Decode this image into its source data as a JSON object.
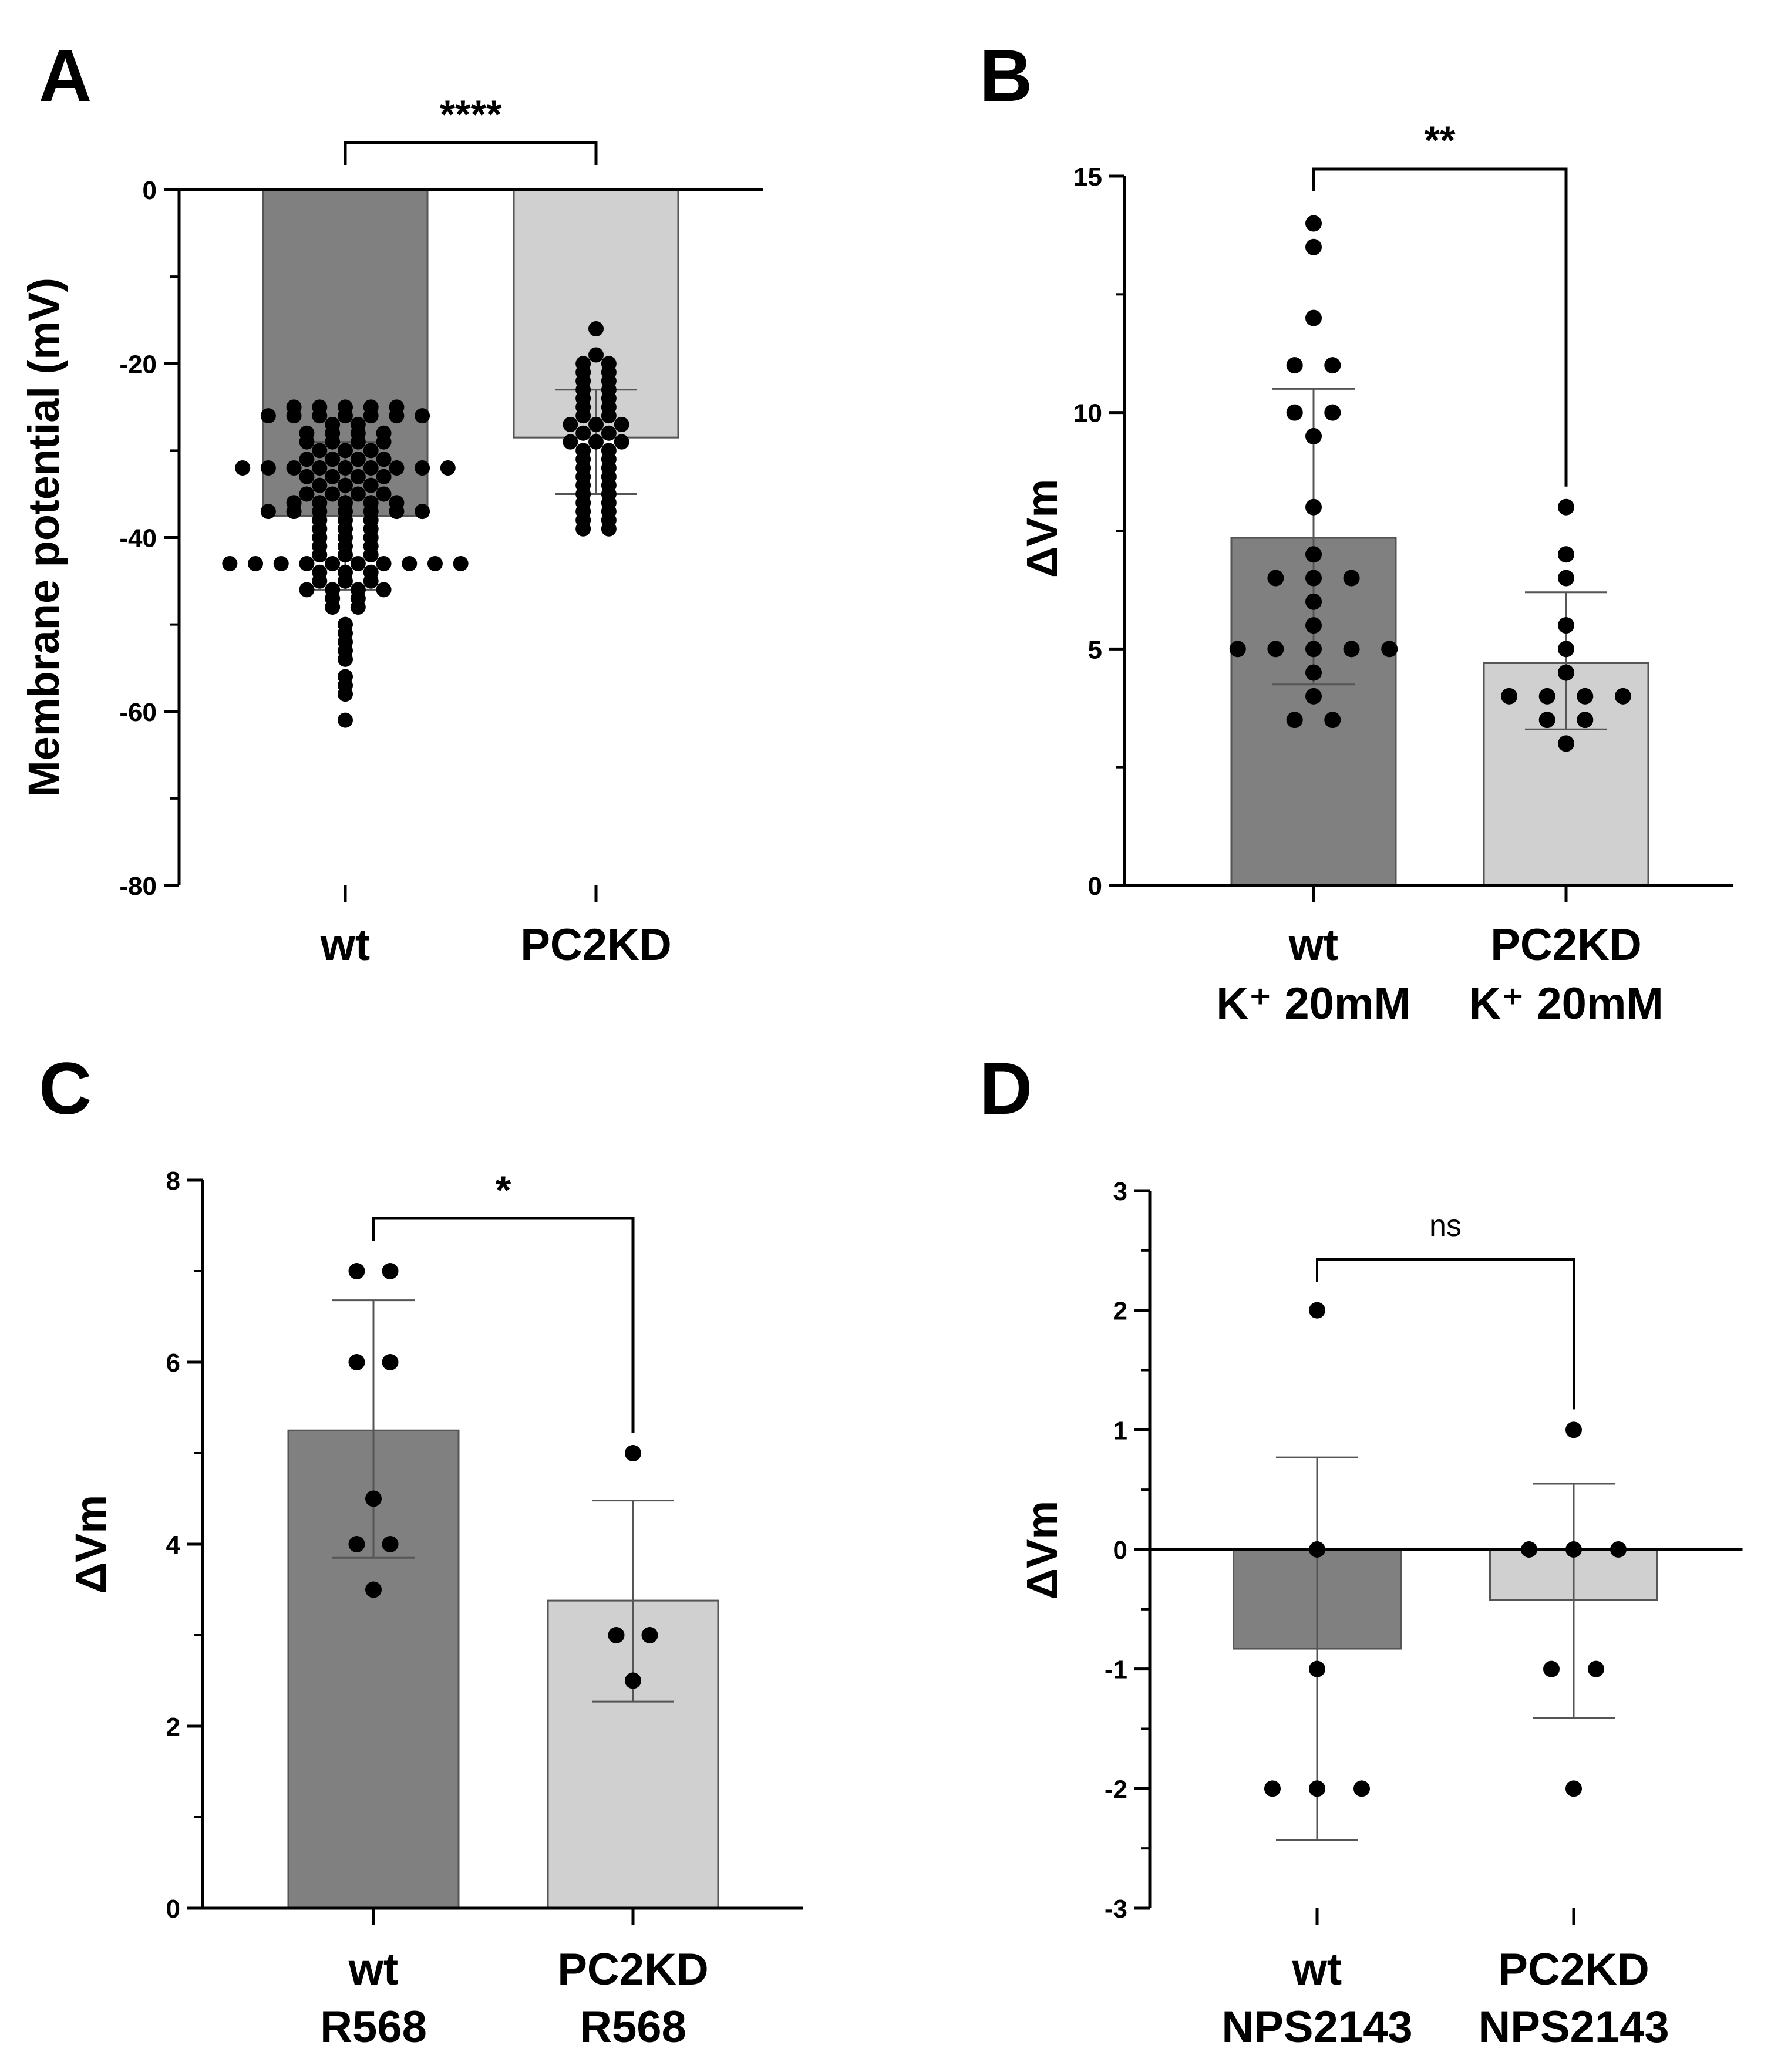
{
  "chart_data": [
    {
      "panel": "A",
      "type": "bar",
      "ylabel": "Membrane potential (mV)",
      "ylim": [
        -80,
        0
      ],
      "yticks": [
        0,
        -20,
        -40,
        -60,
        -80
      ],
      "categories": [
        {
          "label": [
            "wt"
          ],
          "mean": -37.5,
          "sd_low": -46,
          "sd_high": -29,
          "color": "#808080",
          "points": [
            -25,
            -25,
            -25,
            -25,
            -25,
            -26,
            -26,
            -26,
            -26,
            -26,
            -26,
            -26,
            -27,
            -27,
            -28,
            -28,
            -28,
            -28,
            -29,
            -29,
            -29,
            -29,
            -30,
            -30,
            -30,
            -31,
            -31,
            -31,
            -31,
            -32,
            -32,
            -32,
            -32,
            -32,
            -32,
            -32,
            -32,
            -32,
            -33,
            -33,
            -33,
            -33,
            -34,
            -34,
            -34,
            -35,
            -35,
            -35,
            -35,
            -36,
            -36,
            -36,
            -36,
            -36,
            -37,
            -37,
            -37,
            -37,
            -37,
            -37,
            -37,
            -38,
            -38,
            -38,
            -39,
            -39,
            -39,
            -40,
            -40,
            -40,
            -41,
            -41,
            -41,
            -42,
            -42,
            -42,
            -43,
            -43,
            -43,
            -43,
            -43,
            -43,
            -43,
            -43,
            -43,
            -43,
            -44,
            -44,
            -44,
            -45,
            -45,
            -45,
            -46,
            -46,
            -46,
            -46,
            -47,
            -47,
            -48,
            -48,
            -50,
            -51,
            -52,
            -53,
            -54,
            -56,
            -57,
            -58,
            -61
          ]
        },
        {
          "label": [
            "PC2KD"
          ],
          "mean": -28.5,
          "sd_low": -35,
          "sd_high": -23,
          "color": "#d0d0d0",
          "points": [
            -16,
            -19,
            -20,
            -20,
            -21,
            -21,
            -22,
            -22,
            -23,
            -23,
            -24,
            -24,
            -25,
            -25,
            -26,
            -26,
            -27,
            -27,
            -27,
            -28,
            -28,
            -29,
            -29,
            -29,
            -30,
            -30,
            -31,
            -31,
            -32,
            -32,
            -33,
            -33,
            -34,
            -34,
            -35,
            -35,
            -36,
            -36,
            -37,
            -37,
            -38,
            -38,
            -39,
            -39
          ]
        }
      ],
      "comparison": {
        "label": "****"
      }
    },
    {
      "panel": "B",
      "type": "bar",
      "ylabel": "ΔVm",
      "ylim": [
        0,
        15
      ],
      "yticks": [
        0,
        5,
        10,
        15
      ],
      "categories": [
        {
          "label": [
            "wt",
            "K⁺ 20mM"
          ],
          "mean": 7.35,
          "sd_low": 4.25,
          "sd_high": 10.5,
          "color": "#808080",
          "points": [
            14,
            13.5,
            12,
            11,
            11,
            10,
            10,
            9.5,
            8,
            7,
            6.5,
            6.5,
            6.5,
            6,
            5.5,
            5,
            5,
            5,
            5,
            5,
            4.5,
            4,
            3.5,
            3.5
          ]
        },
        {
          "label": [
            "PC2KD",
            "K⁺ 20mM"
          ],
          "mean": 4.7,
          "sd_low": 3.3,
          "sd_high": 6.2,
          "color": "#d0d0d0",
          "points": [
            8,
            7,
            6.5,
            5.5,
            5,
            4.5,
            4,
            4,
            4,
            4,
            3.5,
            3.5,
            3
          ]
        }
      ],
      "comparison": {
        "label": "**"
      }
    },
    {
      "panel": "C",
      "type": "bar",
      "ylabel": "ΔVm",
      "ylim": [
        0,
        8
      ],
      "yticks": [
        0,
        2,
        4,
        6,
        8
      ],
      "categories": [
        {
          "label": [
            "wt",
            "R568"
          ],
          "mean": 5.25,
          "sd_low": 3.85,
          "sd_high": 6.68,
          "color": "#808080",
          "points": [
            7,
            7,
            6,
            6,
            4.5,
            4,
            4,
            3.5
          ]
        },
        {
          "label": [
            "PC2KD",
            "R568"
          ],
          "mean": 3.38,
          "sd_low": 2.27,
          "sd_high": 4.48,
          "color": "#d0d0d0",
          "points": [
            5,
            3,
            3,
            2.5
          ]
        }
      ],
      "comparison": {
        "label": "*"
      }
    },
    {
      "panel": "D",
      "type": "bar",
      "ylabel": "ΔVm",
      "ylim": [
        -3,
        3
      ],
      "yticks": [
        3,
        2,
        1,
        0,
        -1,
        -2,
        -3
      ],
      "categories": [
        {
          "label": [
            "wt",
            "NPS2143"
          ],
          "mean": -0.83,
          "sd_low": -2.43,
          "sd_high": 0.77,
          "color": "#808080",
          "points": [
            2,
            0,
            -1,
            -2,
            -2,
            -2
          ]
        },
        {
          "label": [
            "PC2KD",
            "NPS2143"
          ],
          "mean": -0.42,
          "sd_low": -1.41,
          "sd_high": 0.55,
          "color": "#d0d0d0",
          "points": [
            1,
            0,
            0,
            0,
            -1,
            -1,
            -2
          ]
        }
      ],
      "comparison": {
        "label": "ns"
      }
    }
  ]
}
